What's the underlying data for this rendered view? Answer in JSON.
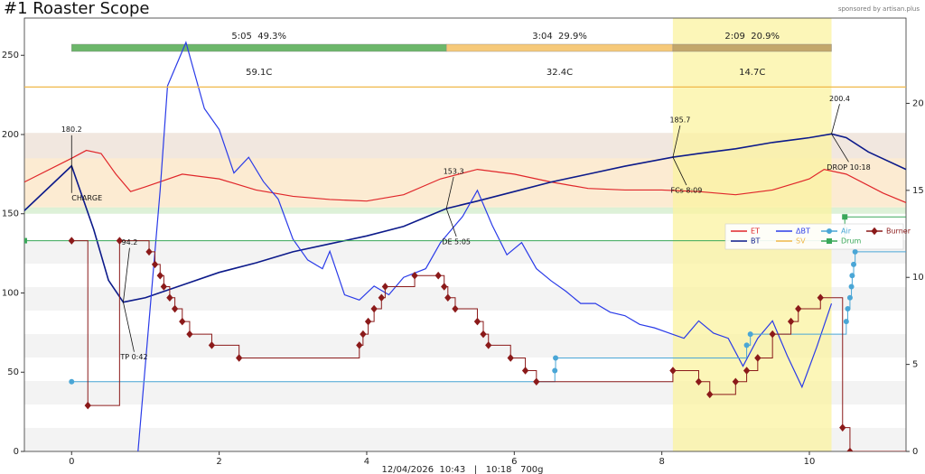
{
  "chart_data": {
    "type": "roast-profile",
    "title": "#1 Roaster Scope",
    "sponsor": "sponsored by artisan.plus",
    "footer": "12/04/2026  10:43   |   10:18   700g",
    "xlim": [
      -0.64,
      11.31
    ],
    "xticks": [
      0,
      2,
      4,
      6,
      8,
      10
    ],
    "ylim": [
      0,
      273.5
    ],
    "yticks": [
      0,
      50,
      100,
      150,
      200,
      250
    ],
    "y2lim": [
      0,
      24.9
    ],
    "y2ticks": [
      0,
      5,
      10,
      15,
      20
    ],
    "bands": [
      {
        "from": 155,
        "to": 201,
        "color": "#efe4db"
      },
      {
        "from": 153,
        "to": 185,
        "color": "#fdebd0"
      },
      {
        "from": 150,
        "to": 154,
        "color": "#d9efd4"
      }
    ],
    "phases": [
      {
        "label": "5:05  49.3%",
        "delta": "59.1C",
        "start": 0,
        "end": 5.08,
        "color": "#6cb76a"
      },
      {
        "label": "3:04  29.9%",
        "delta": "32.4C",
        "start": 5.08,
        "end": 8.15,
        "color": "#f6c979"
      },
      {
        "label": "2:09  20.9%",
        "delta": "14.7C",
        "start": 8.15,
        "end": 10.3,
        "color": "#c3a76a"
      }
    ],
    "highlight": [
      8.15,
      10.3
    ],
    "events": [
      {
        "name": "CHARGE",
        "time": 0,
        "temp": 180.2
      },
      {
        "name": "TP 0:42",
        "time": 0.7,
        "temp": 94.2
      },
      {
        "name": "DE 5:05",
        "time": 5.08,
        "temp": 153.3
      },
      {
        "name": "FCs 8:09",
        "time": 8.15,
        "temp": 185.7
      },
      {
        "name": "DROP 10:18",
        "time": 10.3,
        "temp": 200.4
      }
    ],
    "series": [
      {
        "name": "ET",
        "color": "#e0262a",
        "style": "line",
        "x": [
          -0.64,
          0,
          0.2,
          0.4,
          0.6,
          0.8,
          1.0,
          1.5,
          2,
          2.5,
          3,
          3.5,
          4,
          4.5,
          5,
          5.5,
          6,
          6.5,
          7,
          7.5,
          8,
          8.5,
          9,
          9.5,
          10,
          10.2,
          10.5,
          11,
          11.31
        ],
        "values": [
          170,
          185,
          190,
          188,
          175,
          164,
          167,
          175,
          172,
          165,
          161,
          159,
          158,
          162,
          172,
          178,
          175,
          170,
          166,
          165,
          165,
          164,
          162,
          165,
          172,
          178,
          175,
          163,
          157
        ]
      },
      {
        "name": "BT",
        "color": "#0c1a8a",
        "style": "line",
        "x": [
          -0.64,
          0,
          0.3,
          0.5,
          0.7,
          1.0,
          1.5,
          2,
          2.5,
          3,
          3.5,
          4,
          4.5,
          5.08,
          5.5,
          6,
          6.5,
          7,
          7.5,
          8.15,
          8.5,
          9,
          9.5,
          10,
          10.3,
          10.5,
          10.8,
          11.31
        ],
        "values": [
          152,
          180.2,
          140,
          108,
          94.2,
          97,
          105,
          113,
          119,
          126,
          131,
          136,
          142,
          153.3,
          158,
          164,
          170,
          175,
          180,
          185.7,
          188,
          191,
          195,
          198,
          200.4,
          198,
          189,
          178
        ]
      },
      {
        "name": "ΔBT",
        "color": "#2a3be8",
        "style": "line",
        "axis": "y2",
        "x": [
          0.9,
          1.0,
          1.2,
          1.3,
          1.55,
          1.8,
          2.0,
          2.2,
          2.4,
          2.6,
          2.8,
          3.0,
          3.2,
          3.4,
          3.5,
          3.7,
          3.9,
          4.1,
          4.3,
          4.5,
          4.8,
          5.0,
          5.1,
          5.3,
          5.5,
          5.7,
          5.9,
          6.1,
          6.3,
          6.5,
          6.7,
          6.9,
          7.1,
          7.3,
          7.5,
          7.7,
          7.9,
          8.1,
          8.3,
          8.5,
          8.7,
          8.9,
          9.1,
          9.3,
          9.5,
          9.7,
          9.9,
          10.1,
          10.3
        ],
        "values": [
          0,
          5,
          15,
          21,
          23.5,
          19.7,
          18.5,
          16,
          16.9,
          15.5,
          14.5,
          12.2,
          11,
          10.5,
          11.5,
          9,
          8.7,
          9.5,
          9,
          10,
          10.5,
          12,
          12.5,
          13.5,
          15,
          13,
          11.3,
          12,
          10.5,
          9.8,
          9.2,
          8.5,
          8.5,
          8,
          7.8,
          7.3,
          7.1,
          6.8,
          6.5,
          7.5,
          6.8,
          6.5,
          4.9,
          6.5,
          7.5,
          5.5,
          3.7,
          6,
          8.5
        ]
      },
      {
        "name": "SV",
        "color": "#f0b848",
        "style": "line",
        "x": [
          -0.64,
          11.31
        ],
        "values": [
          230,
          230
        ]
      },
      {
        "name": "Air",
        "color": "#4aa6d6",
        "style": "step",
        "marker": "circle",
        "x": [
          0,
          6.55,
          6.56,
          9.15,
          9.2,
          10.5,
          10.52,
          10.55,
          10.57,
          10.58,
          10.6,
          10.62
        ],
        "values": [
          44,
          51,
          59,
          67,
          74,
          82,
          90,
          97,
          104,
          111,
          118,
          126
        ]
      },
      {
        "name": "Drum",
        "color": "#3aa85a",
        "style": "step",
        "marker": "square",
        "x": [
          -0.64,
          10.48
        ],
        "values": [
          133,
          148
        ]
      },
      {
        "name": "Burner",
        "color": "#8b1a1a",
        "style": "step",
        "marker": "diamond",
        "x": [
          0,
          0.22,
          0.65,
          1.05,
          1.13,
          1.2,
          1.25,
          1.33,
          1.4,
          1.5,
          1.6,
          1.9,
          2.27,
          3.9,
          3.95,
          4.02,
          4.1,
          4.2,
          4.25,
          4.65,
          4.97,
          5.05,
          5.1,
          5.2,
          5.5,
          5.58,
          5.65,
          5.95,
          6.15,
          6.3,
          8.15,
          8.5,
          8.65,
          9.0,
          9.15,
          9.3,
          9.5,
          9.75,
          9.85,
          10.15,
          10.45,
          10.55
        ],
        "values": [
          133,
          29,
          133,
          126,
          118,
          111,
          104,
          97,
          90,
          82,
          74,
          67,
          59,
          67,
          74,
          82,
          90,
          97,
          104,
          111,
          111,
          104,
          97,
          90,
          82,
          74,
          67,
          59,
          51,
          44,
          51,
          44,
          36,
          44,
          51,
          59,
          74,
          82,
          90,
          97,
          15,
          0
        ]
      }
    ]
  }
}
